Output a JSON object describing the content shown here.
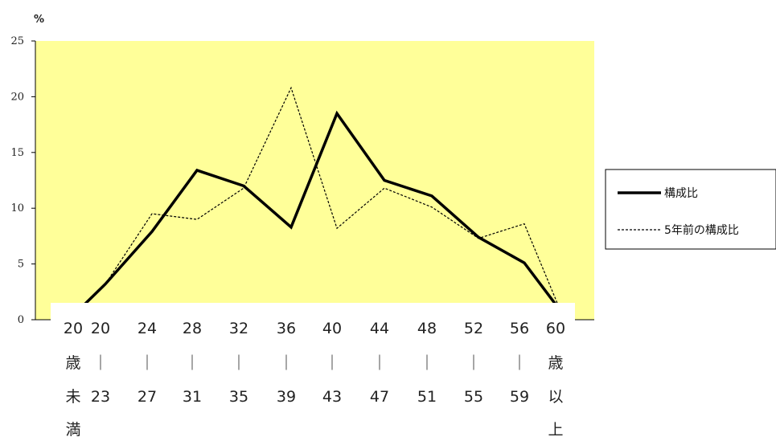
{
  "chart_data": {
    "type": "line",
    "ylabel": "%",
    "ylim": [
      0,
      25
    ],
    "yticks": [
      0,
      5,
      10,
      15,
      20,
      25
    ],
    "categories": [
      [
        "20",
        "歳",
        "未",
        "満"
      ],
      [
        "20",
        "｜",
        "23"
      ],
      [
        "24",
        "｜",
        "27"
      ],
      [
        "28",
        "｜",
        "31"
      ],
      [
        "32",
        "｜",
        "35"
      ],
      [
        "36",
        "｜",
        "39"
      ],
      [
        "40",
        "｜",
        "43"
      ],
      [
        "44",
        "｜",
        "47"
      ],
      [
        "48",
        "｜",
        "51"
      ],
      [
        "52",
        "｜",
        "55"
      ],
      [
        "56",
        "｜",
        "59"
      ],
      [
        "60",
        "歳",
        "以",
        "上"
      ]
    ],
    "series": [
      {
        "name": "構成比",
        "style": "solid",
        "values": [
          0.8,
          3.2,
          7.9,
          13.4,
          12.0,
          8.3,
          18.5,
          12.5,
          11.1,
          7.4,
          5.1,
          0.8
        ]
      },
      {
        "name": "5年前の構成比",
        "style": "dashed",
        "values": [
          0.8,
          3.2,
          9.5,
          9.0,
          11.8,
          20.8,
          8.2,
          11.8,
          10.1,
          7.3,
          8.6,
          0.8
        ]
      }
    ],
    "plot_background": "#ffff99",
    "legend_position": "right"
  }
}
